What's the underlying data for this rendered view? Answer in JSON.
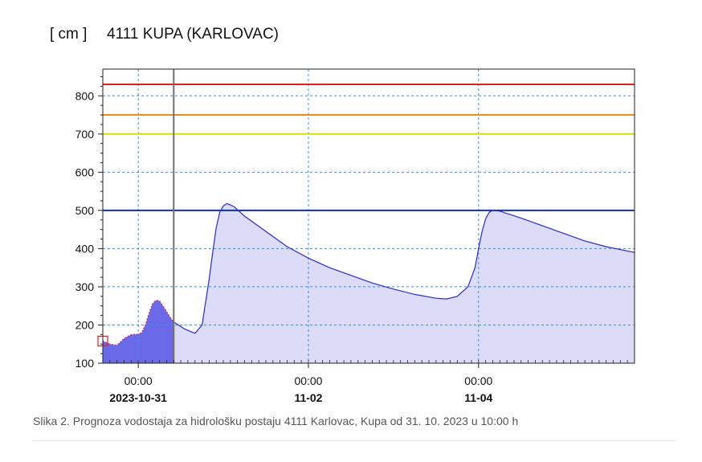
{
  "chart_data": {
    "type": "area",
    "unit_label": "[ cm ]",
    "title": "4111 KUPA (KARLOVAC)",
    "xlabel": "",
    "ylabel": "",
    "x_range": [
      "2023-10-30T14:00",
      "2023-11-05T20:00"
    ],
    "ylim": [
      100,
      870
    ],
    "y_ticks": [
      100,
      200,
      300,
      400,
      500,
      600,
      700,
      800
    ],
    "x_tick_labels": [
      {
        "x": "2023-10-31T00:00",
        "time": "00:00",
        "date": "2023-10-31"
      },
      {
        "x": "2023-11-02T00:00",
        "time": "00:00",
        "date": "11-02"
      },
      {
        "x": "2023-11-04T00:00",
        "time": "00:00",
        "date": "11-04"
      }
    ],
    "forecast_start": "2023-10-31T10:00",
    "grid": true,
    "thresholds": [
      {
        "value": 830,
        "color": "#e0201a"
      },
      {
        "value": 750,
        "color": "#f08a1a"
      },
      {
        "value": 700,
        "color": "#d6e000"
      },
      {
        "value": 500,
        "color": "#1030a8"
      }
    ],
    "series": [
      {
        "kind": "observed",
        "color": "#6a6ae8",
        "points": [
          [
            "2023-10-30T14:00",
            158
          ],
          [
            "2023-10-30T16:00",
            150
          ],
          [
            "2023-10-30T18:00",
            147
          ],
          [
            "2023-10-30T20:00",
            165
          ],
          [
            "2023-10-30T22:00",
            175
          ],
          [
            "2023-10-31T00:00",
            176
          ],
          [
            "2023-10-31T01:00",
            180
          ],
          [
            "2023-10-31T02:00",
            200
          ],
          [
            "2023-10-31T03:00",
            230
          ],
          [
            "2023-10-31T04:00",
            255
          ],
          [
            "2023-10-31T05:00",
            265
          ],
          [
            "2023-10-31T06:00",
            263
          ],
          [
            "2023-10-31T07:00",
            250
          ],
          [
            "2023-10-31T08:00",
            235
          ],
          [
            "2023-10-31T09:00",
            220
          ],
          [
            "2023-10-31T10:00",
            208
          ]
        ]
      },
      {
        "kind": "forecast",
        "color": "#2a2ad0",
        "fill": "#dcdcf8",
        "points": [
          [
            "2023-10-31T10:00",
            208
          ],
          [
            "2023-10-31T13:00",
            190
          ],
          [
            "2023-10-31T16:00",
            178
          ],
          [
            "2023-10-31T18:00",
            200
          ],
          [
            "2023-10-31T20:00",
            320
          ],
          [
            "2023-10-31T21:00",
            390
          ],
          [
            "2023-10-31T22:00",
            455
          ],
          [
            "2023-10-31T23:00",
            495
          ],
          [
            "2023-11-01T00:00",
            512
          ],
          [
            "2023-11-01T01:00",
            518
          ],
          [
            "2023-11-01T03:00",
            510
          ],
          [
            "2023-11-01T06:00",
            485
          ],
          [
            "2023-11-01T12:00",
            445
          ],
          [
            "2023-11-01T18:00",
            405
          ],
          [
            "2023-11-02T00:00",
            375
          ],
          [
            "2023-11-02T06:00",
            350
          ],
          [
            "2023-11-02T12:00",
            330
          ],
          [
            "2023-11-02T18:00",
            310
          ],
          [
            "2023-11-03T00:00",
            294
          ],
          [
            "2023-11-03T06:00",
            280
          ],
          [
            "2023-11-03T12:00",
            270
          ],
          [
            "2023-11-03T15:00",
            268
          ],
          [
            "2023-11-03T18:00",
            275
          ],
          [
            "2023-11-03T21:00",
            300
          ],
          [
            "2023-11-03T23:00",
            350
          ],
          [
            "2023-11-04T00:00",
            400
          ],
          [
            "2023-11-04T01:00",
            445
          ],
          [
            "2023-11-04T02:00",
            478
          ],
          [
            "2023-11-04T03:00",
            495
          ],
          [
            "2023-11-04T04:00",
            500
          ],
          [
            "2023-11-04T06:00",
            498
          ],
          [
            "2023-11-04T12:00",
            480
          ],
          [
            "2023-11-04T18:00",
            460
          ],
          [
            "2023-11-05T00:00",
            440
          ],
          [
            "2023-11-05T06:00",
            420
          ],
          [
            "2023-11-05T12:00",
            405
          ],
          [
            "2023-11-05T20:00",
            390
          ]
        ]
      }
    ]
  },
  "caption": "Slika 2. Prognoza vodostaja za hidrološku postaju 4111 Karlovac, Kupa od 31. 10. 2023 u 10:00 h"
}
